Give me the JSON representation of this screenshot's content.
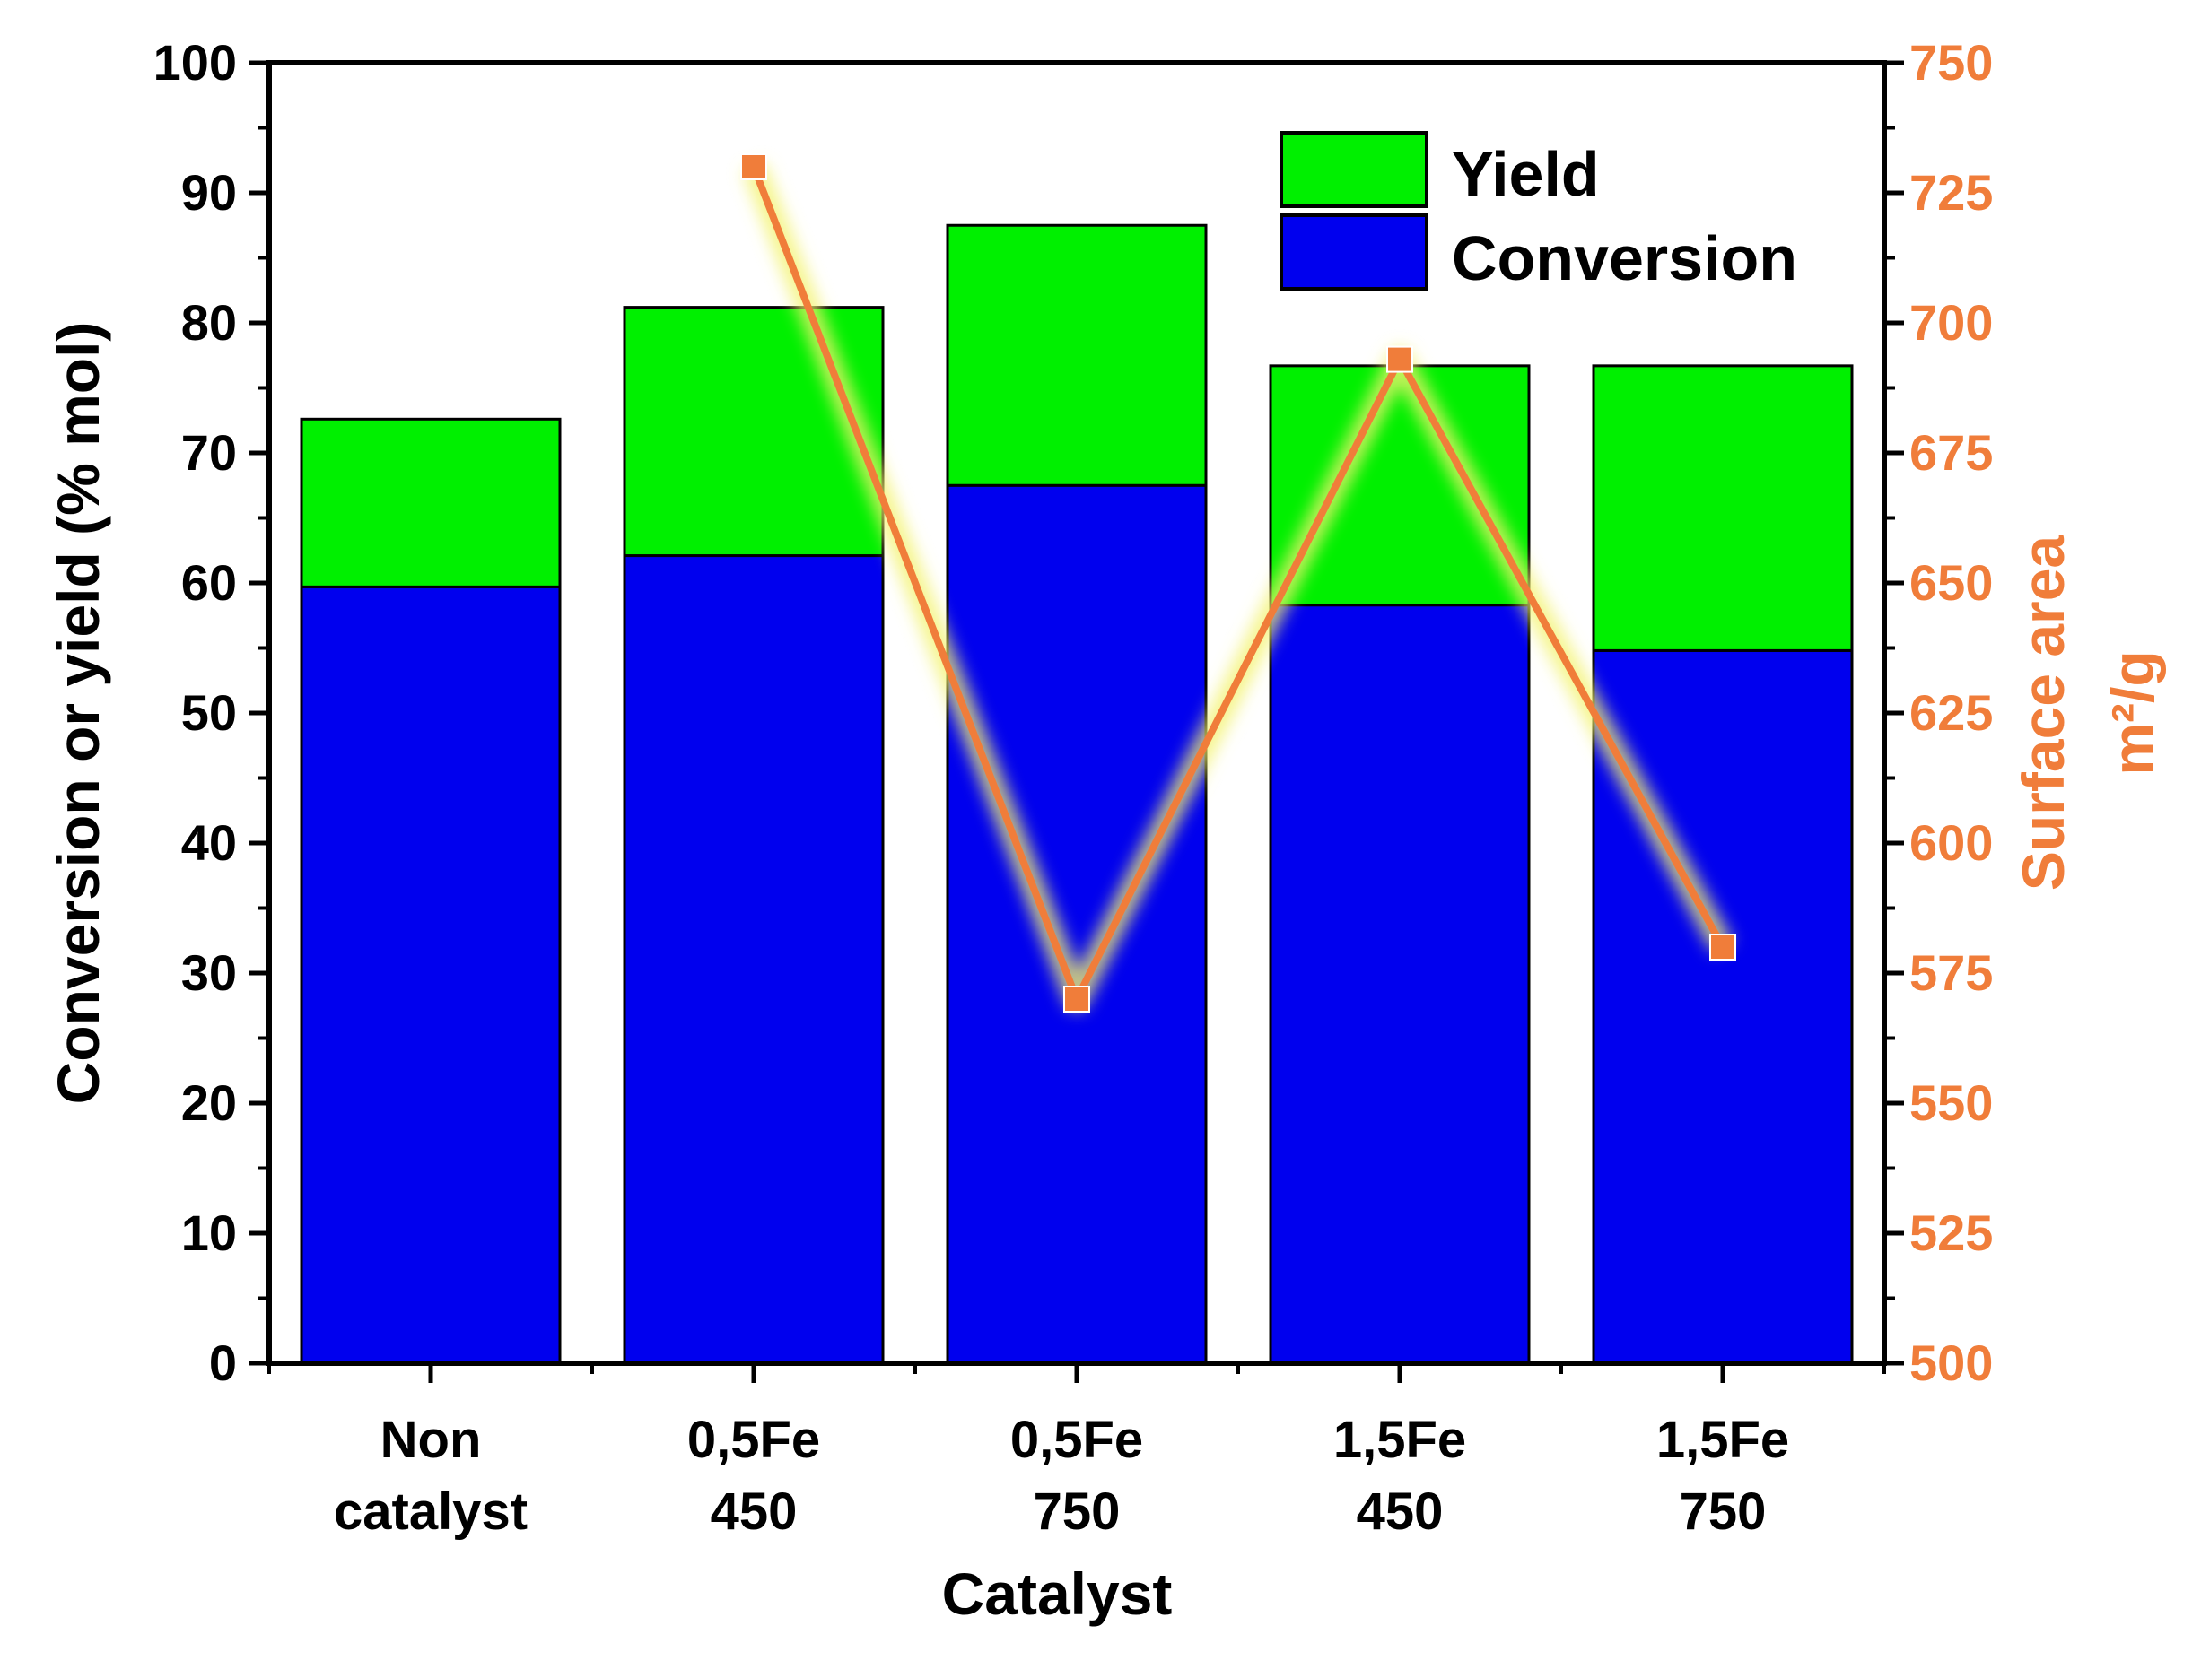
{
  "chart_data": {
    "type": "bar",
    "stacked": true,
    "categories": [
      [
        "Non",
        "catalyst"
      ],
      [
        "0,5Fe",
        "450"
      ],
      [
        "0,5Fe",
        "750"
      ],
      [
        "1,5Fe",
        "450"
      ],
      [
        "1,5Fe",
        "750"
      ]
    ],
    "series": [
      {
        "name": "Conversion",
        "color": "#0000ee",
        "values": [
          59.7,
          62.1,
          67.5,
          58.3,
          54.8
        ]
      },
      {
        "name": "Yield",
        "color": "#00f000",
        "values": [
          12.9,
          19.1,
          20.0,
          18.4,
          21.9
        ]
      }
    ],
    "line_series": {
      "name": "Surface area",
      "color": "#f07d3a",
      "axis": "right",
      "values": [
        null,
        730,
        570,
        693,
        580
      ]
    },
    "xlabel": "Catalyst",
    "ylabel": "Conversion or yield (% mol)",
    "ylabel_right": [
      "Surface area",
      "m²/g"
    ],
    "ylim": [
      0,
      100
    ],
    "yticks": [
      "0",
      "10",
      "20",
      "30",
      "40",
      "50",
      "60",
      "70",
      "80",
      "90",
      "100"
    ],
    "ylim_right": [
      500,
      750
    ],
    "yticks_right": [
      "500",
      "525",
      "550",
      "575",
      "600",
      "625",
      "650",
      "675",
      "700",
      "725",
      "750"
    ],
    "legend": [
      "Yield",
      "Conversion"
    ],
    "legend_position": "top-right",
    "colors": {
      "axis": "#000000",
      "right_axis_text": "#f07d3a",
      "line_glow": "#f2f26e"
    }
  }
}
